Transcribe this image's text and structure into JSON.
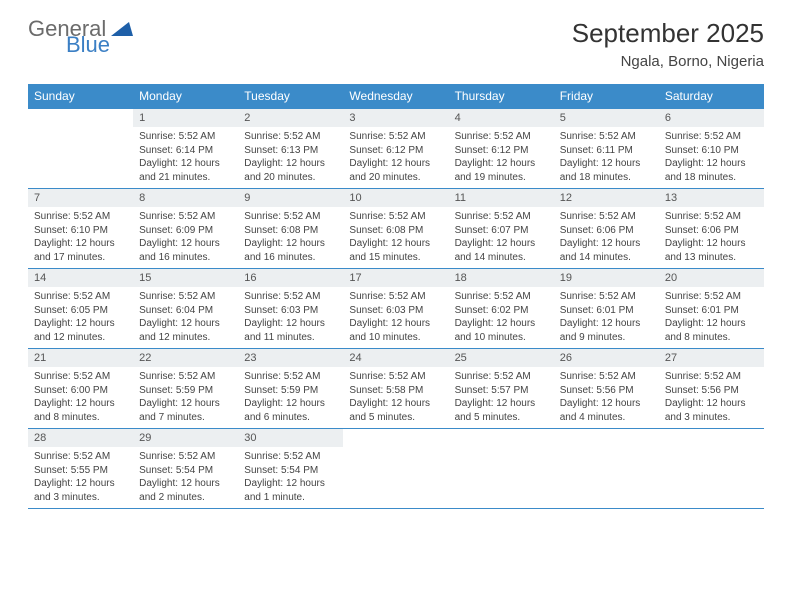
{
  "logo": {
    "word1": "General",
    "word2": "Blue"
  },
  "title": "September 2025",
  "location": "Ngala, Borno, Nigeria",
  "colors": {
    "header_bg": "#3b8bc9",
    "header_text": "#ffffff",
    "daynum_bg": "#eceff1",
    "border": "#3b8bc9",
    "body_text": "#444444",
    "title_text": "#333333",
    "logo_gray": "#6b6b6b",
    "logo_blue": "#3b7fc4",
    "page_bg": "#ffffff"
  },
  "typography": {
    "title_fontsize_pt": 20,
    "location_fontsize_pt": 11,
    "dow_fontsize_pt": 9,
    "daynum_fontsize_pt": 8,
    "info_fontsize_pt": 7.5
  },
  "calendar": {
    "type": "table",
    "columns": [
      "Sunday",
      "Monday",
      "Tuesday",
      "Wednesday",
      "Thursday",
      "Friday",
      "Saturday"
    ],
    "weeks": [
      [
        null,
        {
          "day": "1",
          "sunrise": "5:52 AM",
          "sunset": "6:14 PM",
          "daylight": "12 hours and 21 minutes."
        },
        {
          "day": "2",
          "sunrise": "5:52 AM",
          "sunset": "6:13 PM",
          "daylight": "12 hours and 20 minutes."
        },
        {
          "day": "3",
          "sunrise": "5:52 AM",
          "sunset": "6:12 PM",
          "daylight": "12 hours and 20 minutes."
        },
        {
          "day": "4",
          "sunrise": "5:52 AM",
          "sunset": "6:12 PM",
          "daylight": "12 hours and 19 minutes."
        },
        {
          "day": "5",
          "sunrise": "5:52 AM",
          "sunset": "6:11 PM",
          "daylight": "12 hours and 18 minutes."
        },
        {
          "day": "6",
          "sunrise": "5:52 AM",
          "sunset": "6:10 PM",
          "daylight": "12 hours and 18 minutes."
        }
      ],
      [
        {
          "day": "7",
          "sunrise": "5:52 AM",
          "sunset": "6:10 PM",
          "daylight": "12 hours and 17 minutes."
        },
        {
          "day": "8",
          "sunrise": "5:52 AM",
          "sunset": "6:09 PM",
          "daylight": "12 hours and 16 minutes."
        },
        {
          "day": "9",
          "sunrise": "5:52 AM",
          "sunset": "6:08 PM",
          "daylight": "12 hours and 16 minutes."
        },
        {
          "day": "10",
          "sunrise": "5:52 AM",
          "sunset": "6:08 PM",
          "daylight": "12 hours and 15 minutes."
        },
        {
          "day": "11",
          "sunrise": "5:52 AM",
          "sunset": "6:07 PM",
          "daylight": "12 hours and 14 minutes."
        },
        {
          "day": "12",
          "sunrise": "5:52 AM",
          "sunset": "6:06 PM",
          "daylight": "12 hours and 14 minutes."
        },
        {
          "day": "13",
          "sunrise": "5:52 AM",
          "sunset": "6:06 PM",
          "daylight": "12 hours and 13 minutes."
        }
      ],
      [
        {
          "day": "14",
          "sunrise": "5:52 AM",
          "sunset": "6:05 PM",
          "daylight": "12 hours and 12 minutes."
        },
        {
          "day": "15",
          "sunrise": "5:52 AM",
          "sunset": "6:04 PM",
          "daylight": "12 hours and 12 minutes."
        },
        {
          "day": "16",
          "sunrise": "5:52 AM",
          "sunset": "6:03 PM",
          "daylight": "12 hours and 11 minutes."
        },
        {
          "day": "17",
          "sunrise": "5:52 AM",
          "sunset": "6:03 PM",
          "daylight": "12 hours and 10 minutes."
        },
        {
          "day": "18",
          "sunrise": "5:52 AM",
          "sunset": "6:02 PM",
          "daylight": "12 hours and 10 minutes."
        },
        {
          "day": "19",
          "sunrise": "5:52 AM",
          "sunset": "6:01 PM",
          "daylight": "12 hours and 9 minutes."
        },
        {
          "day": "20",
          "sunrise": "5:52 AM",
          "sunset": "6:01 PM",
          "daylight": "12 hours and 8 minutes."
        }
      ],
      [
        {
          "day": "21",
          "sunrise": "5:52 AM",
          "sunset": "6:00 PM",
          "daylight": "12 hours and 8 minutes."
        },
        {
          "day": "22",
          "sunrise": "5:52 AM",
          "sunset": "5:59 PM",
          "daylight": "12 hours and 7 minutes."
        },
        {
          "day": "23",
          "sunrise": "5:52 AM",
          "sunset": "5:59 PM",
          "daylight": "12 hours and 6 minutes."
        },
        {
          "day": "24",
          "sunrise": "5:52 AM",
          "sunset": "5:58 PM",
          "daylight": "12 hours and 5 minutes."
        },
        {
          "day": "25",
          "sunrise": "5:52 AM",
          "sunset": "5:57 PM",
          "daylight": "12 hours and 5 minutes."
        },
        {
          "day": "26",
          "sunrise": "5:52 AM",
          "sunset": "5:56 PM",
          "daylight": "12 hours and 4 minutes."
        },
        {
          "day": "27",
          "sunrise": "5:52 AM",
          "sunset": "5:56 PM",
          "daylight": "12 hours and 3 minutes."
        }
      ],
      [
        {
          "day": "28",
          "sunrise": "5:52 AM",
          "sunset": "5:55 PM",
          "daylight": "12 hours and 3 minutes."
        },
        {
          "day": "29",
          "sunrise": "5:52 AM",
          "sunset": "5:54 PM",
          "daylight": "12 hours and 2 minutes."
        },
        {
          "day": "30",
          "sunrise": "5:52 AM",
          "sunset": "5:54 PM",
          "daylight": "12 hours and 1 minute."
        },
        null,
        null,
        null,
        null
      ]
    ],
    "labels": {
      "sunrise": "Sunrise: ",
      "sunset": "Sunset: ",
      "daylight": "Daylight: "
    }
  }
}
